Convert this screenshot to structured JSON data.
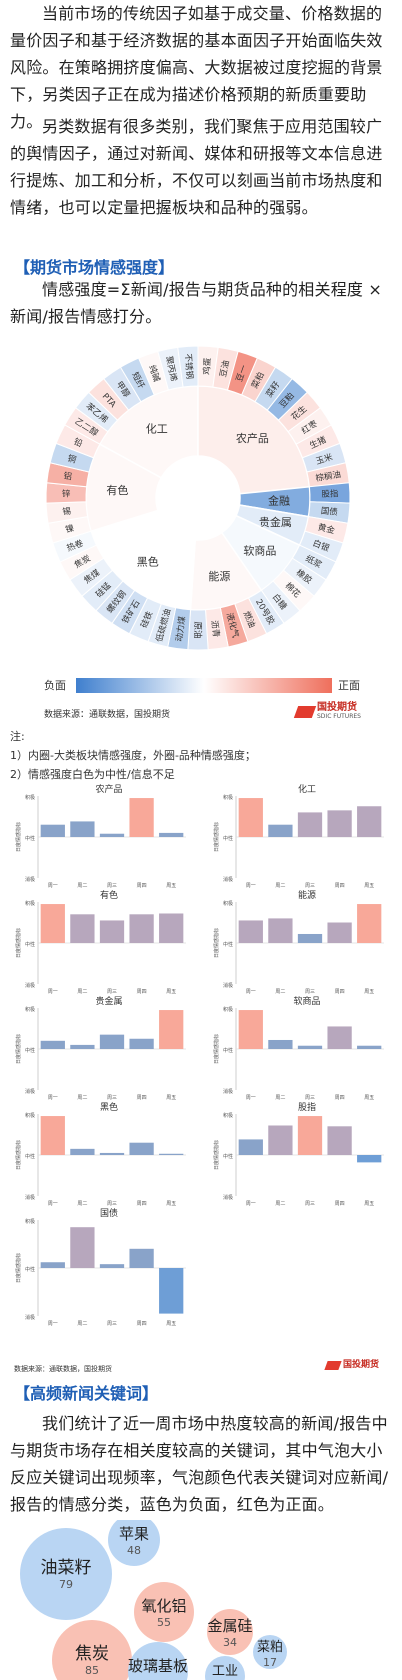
{
  "intro": {
    "p1": "当前市场的传统因子如基于成交量、价格数据的量价因子和基于经济数据的基本面因子开始面临失效风险。在策略拥挤度偏高、大数据被过度挖掘的背景下，另类因子正在成为描述价格预期的新质重要助力。",
    "p2": "另类数据有很多类别，我们聚焦于应用范围较广的舆情因子，通过对新闻、媒体和研报等文本信息进行提炼、加工和分析，不仅可以刻画当前市场热度和情绪，也可以定量把握板块和品种的强弱。"
  },
  "section1": {
    "title": "【期货市场情感强度】",
    "desc": "情感强度=Σ新闻/报告与期货品种的相关程度 × 新闻/报告情感打分。"
  },
  "sunburst": {
    "sectors": [
      {
        "name": "化工",
        "value": 0.05,
        "items": [
          {
            "name": "乙二醇",
            "value": 0.15
          },
          {
            "name": "苯乙烯",
            "value": -0.15
          },
          {
            "name": "PTA",
            "value": 0.2
          },
          {
            "name": "甲醇",
            "value": -0.2
          },
          {
            "name": "短纤",
            "value": -0.3
          },
          {
            "name": "纯碱",
            "value": 0.05
          },
          {
            "name": "聚丙烯",
            "value": -0.1
          },
          {
            "name": "不锈钢",
            "value": -0.15
          }
        ]
      },
      {
        "name": "农产品",
        "value": 0.12,
        "items": [
          {
            "name": "鸡蛋",
            "value": 0.1
          },
          {
            "name": "豆油",
            "value": 0.2
          },
          {
            "name": "豆一",
            "value": 0.75
          },
          {
            "name": "菜粕",
            "value": 0.3
          },
          {
            "name": "菜籽",
            "value": -0.3
          },
          {
            "name": "豆粕",
            "value": -0.55
          },
          {
            "name": "花生",
            "value": 0.2
          },
          {
            "name": "红枣",
            "value": 0.1
          },
          {
            "name": "生猪",
            "value": 0.15
          },
          {
            "name": "玉米",
            "value": -0.2
          },
          {
            "name": "棕榈油",
            "value": 0.25
          }
        ]
      },
      {
        "name": "金融",
        "value": -0.65,
        "items": [
          {
            "name": "股指",
            "value": -0.7
          },
          {
            "name": "国债",
            "value": -0.3
          }
        ]
      },
      {
        "name": "贵金属",
        "value": -0.15,
        "items": [
          {
            "name": "黄金",
            "value": 0.15
          },
          {
            "name": "白银",
            "value": -0.15
          }
        ]
      },
      {
        "name": "软商品",
        "value": -0.05,
        "items": [
          {
            "name": "纸浆",
            "value": -0.15
          },
          {
            "name": "橡胶",
            "value": -0.1
          },
          {
            "name": "棉花",
            "value": 0.05
          },
          {
            "name": "白糖",
            "value": -0.1
          }
        ]
      },
      {
        "name": "能源",
        "value": 0.05,
        "items": [
          {
            "name": "20号胶",
            "value": -0.15
          },
          {
            "name": "燃油",
            "value": 0.2
          },
          {
            "name": "液化气",
            "value": 0.6
          },
          {
            "name": "沥青",
            "value": 0.15
          },
          {
            "name": "原油",
            "value": -0.2
          }
        ]
      },
      {
        "name": "黑色",
        "value": 0.0,
        "items": [
          {
            "name": "动力煤",
            "value": -0.4
          },
          {
            "name": "低硫燃油",
            "value": -0.15
          },
          {
            "name": "硅铁",
            "value": -0.15
          },
          {
            "name": "铁矿石",
            "value": -0.25
          },
          {
            "name": "螺纹钢",
            "value": -0.2
          },
          {
            "name": "硅锰",
            "value": -0.15
          },
          {
            "name": "焦煤",
            "value": -0.1
          },
          {
            "name": "焦炭",
            "value": 0.05
          },
          {
            "name": "热卷",
            "value": -0.05
          }
        ]
      },
      {
        "name": "有色",
        "value": 0.05,
        "items": [
          {
            "name": "镍",
            "value": 0.05
          },
          {
            "name": "锡",
            "value": 0.1
          },
          {
            "name": "锌",
            "value": 0.45
          },
          {
            "name": "铝",
            "value": 0.55
          },
          {
            "name": "铜",
            "value": -0.3
          },
          {
            "name": "铅",
            "value": 0.15
          }
        ]
      }
    ]
  },
  "legend": {
    "neg": "负面",
    "pos": "正面"
  },
  "source": "数据来源：通联数据，国投期货",
  "logo": {
    "name": "国投期货",
    "sub": "SDIC FUTURES"
  },
  "notes": {
    "label": "注:",
    "n1": "1）内圈-大类板块情感强度，外圈-品种情感强度；",
    "n2": "2）情感强度白色为中性/信息不足"
  },
  "bar_axis": {
    "pos": "积极",
    "mid": "中性",
    "neg": "消极",
    "ylabel": "日度情感指标",
    "days": [
      "周一",
      "周二",
      "周三",
      "周四",
      "周五"
    ]
  },
  "chart_data": [
    {
      "type": "bar",
      "title": "农产品",
      "categories": [
        "周一",
        "周二",
        "周三",
        "周四",
        "周五"
      ],
      "values": [
        0.3,
        0.38,
        0.08,
        0.95,
        0.1
      ],
      "ylim": [
        -1,
        1
      ]
    },
    {
      "type": "bar",
      "title": "化工",
      "categories": [
        "周一",
        "周二",
        "周三",
        "周四",
        "周五"
      ],
      "values": [
        0.95,
        0.3,
        0.6,
        0.65,
        0.75
      ],
      "ylim": [
        -1,
        1
      ]
    },
    {
      "type": "bar",
      "title": "有色",
      "categories": [
        "周一",
        "周二",
        "周三",
        "周四",
        "周五"
      ],
      "values": [
        0.95,
        0.7,
        0.55,
        0.7,
        0.72
      ],
      "ylim": [
        -1,
        1
      ]
    },
    {
      "type": "bar",
      "title": "能源",
      "categories": [
        "周一",
        "周二",
        "周三",
        "周四",
        "周五"
      ],
      "values": [
        0.55,
        0.6,
        0.22,
        0.5,
        0.95
      ],
      "ylim": [
        -1,
        1
      ]
    },
    {
      "type": "bar",
      "title": "贵金属",
      "categories": [
        "周一",
        "周二",
        "周三",
        "周四",
        "周五"
      ],
      "values": [
        0.2,
        0.1,
        0.35,
        0.25,
        0.95
      ],
      "ylim": [
        -1,
        1
      ]
    },
    {
      "type": "bar",
      "title": "软商品",
      "categories": [
        "周一",
        "周二",
        "周三",
        "周四",
        "周五"
      ],
      "values": [
        0.95,
        0.22,
        0.08,
        0.55,
        0.08
      ],
      "ylim": [
        -1,
        1
      ]
    },
    {
      "type": "bar",
      "title": "黑色",
      "categories": [
        "周一",
        "周二",
        "周三",
        "周四",
        "周五"
      ],
      "values": [
        0.95,
        0.15,
        0.05,
        0.3,
        0.03
      ],
      "ylim": [
        -1,
        1
      ]
    },
    {
      "type": "bar",
      "title": "股指",
      "categories": [
        "周一",
        "周二",
        "周三",
        "周四",
        "周五"
      ],
      "values": [
        0.38,
        0.72,
        0.95,
        0.7,
        -0.18
      ],
      "ylim": [
        -1,
        1
      ]
    },
    {
      "type": "bar",
      "title": "国债",
      "categories": [
        "周一",
        "周二",
        "周三",
        "周四",
        "周五"
      ],
      "values": [
        0.12,
        0.85,
        0.08,
        0.4,
        -0.95
      ],
      "ylim": [
        -1,
        1
      ]
    }
  ],
  "section2": {
    "title": "【高频新闻关键词】",
    "desc": "我们统计了近一周市场中热度较高的新闻/报告中与期货市场存在相关度较高的关键词，其中气泡大小反应关键词出现频率，气泡颜色代表关键词对应新闻/报告的情感分类，蓝色为负面，红色为正面。"
  },
  "bubbles": [
    {
      "name": "苹果",
      "count": "48",
      "sentiment": "neg"
    },
    {
      "name": "油菜籽",
      "count": "79",
      "sentiment": "neg"
    },
    {
      "name": "氧化铝",
      "count": "55",
      "sentiment": "pos"
    },
    {
      "name": "金属硅",
      "count": "34",
      "sentiment": "pos"
    },
    {
      "name": "焦炭",
      "count": "85",
      "sentiment": "pos"
    },
    {
      "name": "玻璃基板",
      "count": "",
      "sentiment": "neg"
    },
    {
      "name": "菜粕",
      "count": "17",
      "sentiment": "neg"
    },
    {
      "name": "工业",
      "count": "",
      "sentiment": "neg"
    }
  ],
  "colors": {
    "neg": "#4a86cf",
    "pos": "#f07a68",
    "title": "#1f5fb5"
  }
}
